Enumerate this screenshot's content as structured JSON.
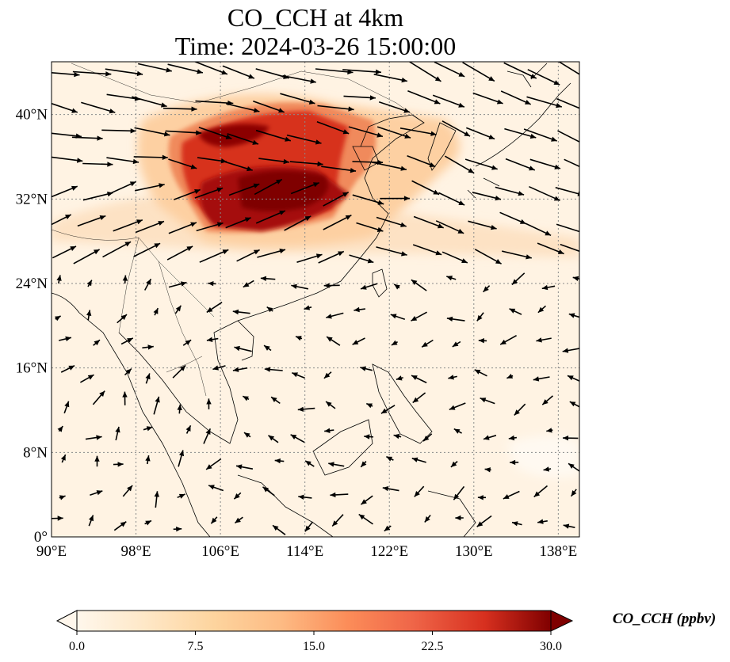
{
  "figure": {
    "title_line1": "CO_CCH at 4km",
    "title_line2": "Time: 2024-03-26 15:00:00"
  },
  "map": {
    "lon_range": [
      90,
      140
    ],
    "lat_range": [
      0,
      45
    ],
    "lon_ticks": [
      {
        "value": 90,
        "label": "90°E"
      },
      {
        "value": 98,
        "label": "98°E"
      },
      {
        "value": 106,
        "label": "106°E"
      },
      {
        "value": 114,
        "label": "114°E"
      },
      {
        "value": 122,
        "label": "122°E"
      },
      {
        "value": 130,
        "label": "130°E"
      },
      {
        "value": 138,
        "label": "138°E"
      }
    ],
    "lat_ticks": [
      {
        "value": 0,
        "label": "0°"
      },
      {
        "value": 8,
        "label": "8°N"
      },
      {
        "value": 16,
        "label": "16°N"
      },
      {
        "value": 24,
        "label": "24°N"
      },
      {
        "value": 32,
        "label": "32°N"
      },
      {
        "value": 40,
        "label": "40°N"
      }
    ],
    "gridlines": true,
    "colors": {
      "background_field": "#fff3e3",
      "high": "#7f0000",
      "grid": "#8a8a8a",
      "coast": "#000000",
      "arrow": "#000000"
    }
  },
  "colorbar": {
    "label": "CO_CCH (ppbv)",
    "min": 0.0,
    "max": 30.0,
    "extend": "both",
    "colormap": "OrRd",
    "ticks": [
      {
        "value": 0.0,
        "label": "0.0"
      },
      {
        "value": 7.5,
        "label": "7.5"
      },
      {
        "value": 15.0,
        "label": "15.0"
      },
      {
        "value": 22.5,
        "label": "22.5"
      },
      {
        "value": 30.0,
        "label": "30.0"
      }
    ]
  }
}
